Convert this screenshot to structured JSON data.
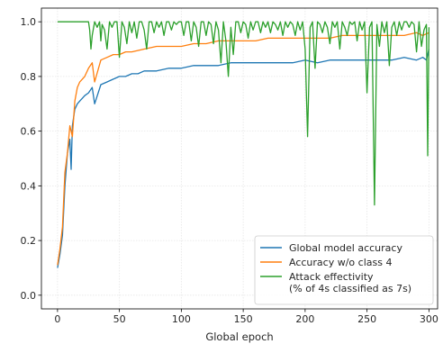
{
  "chart_data": {
    "type": "line",
    "title": "",
    "xlabel": "Global epoch",
    "ylabel": "",
    "xlim": [
      -13,
      307
    ],
    "ylim": [
      -0.05,
      1.05
    ],
    "xticks": [
      0,
      50,
      100,
      150,
      200,
      250,
      300
    ],
    "xtick_labels": [
      "0",
      "50",
      "100",
      "150",
      "200",
      "250",
      "300"
    ],
    "yticks": [
      0.0,
      0.2,
      0.4,
      0.6,
      0.8,
      1.0
    ],
    "ytick_labels": [
      "0.0",
      "0.2",
      "0.4",
      "0.6",
      "0.8",
      "1.0"
    ],
    "grid": true,
    "legend_position": "lower-right",
    "series": [
      {
        "name": "Global model accuracy",
        "color": "#1f77b4",
        "x": [
          0,
          2,
          4,
          6,
          8,
          10,
          11,
          12,
          14,
          16,
          18,
          20,
          22,
          25,
          28,
          30,
          35,
          40,
          45,
          50,
          55,
          60,
          65,
          70,
          75,
          80,
          90,
          100,
          110,
          120,
          130,
          140,
          150,
          160,
          170,
          180,
          190,
          200,
          210,
          220,
          230,
          240,
          250,
          260,
          270,
          280,
          290,
          295,
          298,
          300
        ],
        "y": [
          0.1,
          0.15,
          0.22,
          0.4,
          0.52,
          0.57,
          0.46,
          0.62,
          0.68,
          0.7,
          0.71,
          0.72,
          0.73,
          0.74,
          0.76,
          0.7,
          0.77,
          0.78,
          0.79,
          0.8,
          0.8,
          0.81,
          0.81,
          0.82,
          0.82,
          0.82,
          0.83,
          0.83,
          0.84,
          0.84,
          0.84,
          0.85,
          0.85,
          0.85,
          0.85,
          0.85,
          0.85,
          0.86,
          0.85,
          0.86,
          0.86,
          0.86,
          0.86,
          0.86,
          0.86,
          0.87,
          0.86,
          0.87,
          0.86,
          0.9
        ]
      },
      {
        "name": "Accuracy w/o class 4",
        "color": "#ff7f0e",
        "x": [
          0,
          2,
          4,
          6,
          8,
          10,
          12,
          14,
          16,
          18,
          20,
          22,
          25,
          28,
          30,
          35,
          40,
          45,
          50,
          55,
          60,
          70,
          80,
          90,
          100,
          110,
          120,
          130,
          140,
          150,
          160,
          170,
          180,
          190,
          200,
          210,
          220,
          230,
          240,
          250,
          260,
          270,
          280,
          290,
          295,
          300
        ],
        "y": [
          0.11,
          0.17,
          0.25,
          0.45,
          0.52,
          0.62,
          0.58,
          0.71,
          0.76,
          0.78,
          0.79,
          0.8,
          0.83,
          0.85,
          0.78,
          0.86,
          0.87,
          0.88,
          0.88,
          0.89,
          0.89,
          0.9,
          0.91,
          0.91,
          0.91,
          0.92,
          0.92,
          0.93,
          0.93,
          0.93,
          0.93,
          0.94,
          0.94,
          0.94,
          0.94,
          0.94,
          0.94,
          0.95,
          0.95,
          0.95,
          0.95,
          0.95,
          0.95,
          0.96,
          0.95,
          0.96
        ]
      },
      {
        "name": "Attack effectivity\n(% of 4s classified as 7s)",
        "color": "#2ca02c",
        "x": [
          0,
          10,
          20,
          25,
          26,
          27,
          28,
          30,
          32,
          34,
          35,
          36,
          38,
          40,
          42,
          44,
          46,
          48,
          50,
          52,
          54,
          56,
          58,
          60,
          62,
          64,
          66,
          68,
          70,
          72,
          74,
          76,
          78,
          80,
          82,
          84,
          86,
          88,
          90,
          92,
          94,
          96,
          98,
          100,
          102,
          104,
          106,
          108,
          110,
          112,
          114,
          116,
          118,
          120,
          122,
          124,
          126,
          128,
          130,
          132,
          134,
          136,
          138,
          140,
          142,
          144,
          146,
          148,
          150,
          152,
          154,
          156,
          158,
          160,
          162,
          164,
          166,
          168,
          170,
          172,
          174,
          176,
          178,
          180,
          182,
          184,
          186,
          188,
          190,
          192,
          194,
          196,
          198,
          200,
          202,
          204,
          206,
          208,
          210,
          212,
          214,
          216,
          218,
          220,
          222,
          224,
          226,
          228,
          230,
          232,
          234,
          236,
          238,
          240,
          242,
          244,
          246,
          248,
          250,
          252,
          254,
          256,
          258,
          260,
          262,
          264,
          266,
          268,
          270,
          272,
          274,
          276,
          278,
          280,
          282,
          284,
          286,
          288,
          290,
          292,
          294,
          296,
          298,
          299,
          300
        ],
        "y": [
          1.0,
          1.0,
          1.0,
          1.0,
          0.97,
          0.9,
          0.95,
          1.0,
          0.98,
          1.0,
          0.93,
          0.99,
          0.97,
          0.9,
          1.0,
          0.98,
          1.0,
          1.0,
          0.87,
          1.0,
          0.98,
          0.92,
          1.0,
          0.96,
          1.0,
          0.94,
          1.0,
          1.0,
          0.97,
          0.9,
          1.0,
          1.0,
          0.96,
          1.0,
          0.98,
          1.0,
          0.95,
          1.0,
          1.0,
          0.97,
          1.0,
          0.99,
          1.0,
          1.0,
          0.95,
          1.0,
          1.0,
          0.93,
          1.0,
          0.98,
          0.91,
          1.0,
          1.0,
          0.95,
          1.0,
          0.99,
          0.92,
          1.0,
          0.97,
          0.85,
          1.0,
          0.93,
          0.8,
          0.98,
          0.88,
          1.0,
          1.0,
          0.96,
          1.0,
          0.99,
          0.94,
          1.0,
          0.97,
          1.0,
          1.0,
          0.96,
          1.0,
          0.98,
          1.0,
          0.96,
          1.0,
          0.99,
          0.97,
          1.0,
          0.95,
          1.0,
          0.98,
          1.0,
          0.99,
          0.95,
          1.0,
          0.97,
          1.0,
          0.9,
          0.58,
          0.98,
          1.0,
          0.83,
          1.0,
          0.99,
          0.96,
          1.0,
          0.98,
          0.92,
          1.0,
          0.98,
          1.0,
          0.9,
          1.0,
          0.98,
          0.95,
          1.0,
          0.99,
          1.0,
          0.93,
          1.0,
          0.97,
          1.0,
          0.74,
          0.98,
          1.0,
          0.33,
          0.99,
          0.91,
          1.0,
          0.96,
          1.0,
          0.84,
          0.98,
          1.0,
          0.95,
          1.0,
          0.97,
          1.0,
          1.0,
          0.98,
          1.0,
          0.99,
          0.89,
          1.0,
          0.91,
          0.97,
          0.99,
          0.51,
          0.98
        ]
      }
    ]
  }
}
